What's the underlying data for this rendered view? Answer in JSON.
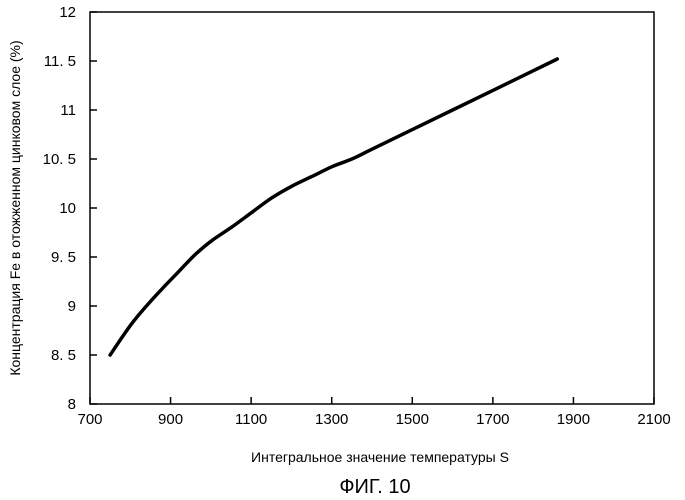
{
  "chart_data": {
    "type": "line",
    "xlabel": "Интегральное значение температуры S",
    "ylabel": "Концентрация Fe в отожженном цинковом слое (%)",
    "xlim": [
      700,
      2100
    ],
    "ylim": [
      8,
      12
    ],
    "xticks": [
      700,
      900,
      1100,
      1300,
      1500,
      1700,
      1900,
      2100
    ],
    "yticks": [
      8,
      8.5,
      9,
      9.5,
      10,
      10.5,
      11,
      11.5,
      12
    ],
    "xtick_labels": [
      "700",
      "900",
      "1100",
      "1300",
      "1500",
      "1700",
      "1900",
      "2100"
    ],
    "ytick_labels": [
      "8",
      "8. 5",
      "9",
      "9. 5",
      "10",
      "10. 5",
      "11",
      "11. 5",
      "12"
    ],
    "grid": false,
    "series": [
      {
        "x": [
          750,
          800,
          840,
          880,
          920,
          960,
          1000,
          1050,
          1100,
          1150,
          1200,
          1250,
          1300,
          1350,
          1400,
          1500,
          1600,
          1700,
          1800,
          1860
        ],
        "y": [
          8.5,
          8.8,
          9.0,
          9.18,
          9.35,
          9.52,
          9.66,
          9.8,
          9.95,
          10.1,
          10.22,
          10.32,
          10.42,
          10.5,
          10.6,
          10.8,
          11.0,
          11.2,
          11.4,
          11.52
        ]
      }
    ]
  },
  "figure": {
    "caption": "ФИГ. 10"
  }
}
